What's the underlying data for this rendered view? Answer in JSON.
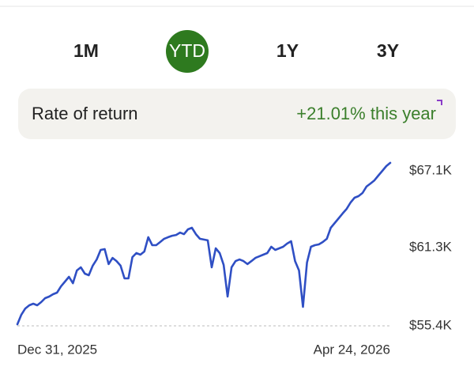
{
  "tabs": [
    "1M",
    "YTD",
    "1Y",
    "3Y"
  ],
  "selected_tab": 1,
  "return_card": {
    "label": "Rate of return",
    "value": "+21.01% this year"
  },
  "chart_data": {
    "type": "line",
    "categories": [
      "Dec 31, 2025",
      null,
      null,
      null,
      null,
      null,
      null,
      null,
      null,
      null,
      null,
      null,
      null,
      null,
      null,
      null,
      null,
      null,
      null,
      null,
      null,
      null,
      null,
      null,
      null,
      null,
      null,
      null,
      null,
      null,
      null,
      null,
      null,
      null,
      null,
      null,
      null,
      null,
      null,
      null,
      null,
      null,
      null,
      null,
      null,
      null,
      null,
      null,
      null,
      null,
      null,
      null,
      null,
      null,
      null,
      null,
      null,
      null,
      null,
      null,
      null,
      null,
      null,
      null,
      null,
      null,
      null,
      null,
      null,
      null,
      null,
      null,
      null,
      null,
      null,
      null,
      null,
      null,
      null,
      null,
      null,
      null,
      null,
      null,
      null,
      null,
      null,
      null,
      null,
      null,
      null,
      null,
      null,
      null,
      "Apr 24, 2026"
    ],
    "values": [
      55520,
      56240,
      56710,
      56950,
      57070,
      56950,
      57190,
      57490,
      57610,
      57790,
      57910,
      58380,
      58740,
      59100,
      58620,
      59580,
      59820,
      59340,
      59220,
      59940,
      60410,
      61130,
      61190,
      60060,
      60530,
      60290,
      59940,
      58980,
      58980,
      60590,
      60890,
      60770,
      61010,
      62090,
      61490,
      61490,
      61730,
      61970,
      62090,
      62200,
      62260,
      62440,
      62320,
      62680,
      62800,
      62320,
      61970,
      61910,
      61850,
      59820,
      61250,
      60890,
      60000,
      57610,
      59820,
      60290,
      60410,
      60290,
      60060,
      60290,
      60530,
      60650,
      60770,
      60890,
      61370,
      61130,
      61250,
      61370,
      61610,
      61790,
      60290,
      59580,
      56830,
      60180,
      61370,
      61490,
      61550,
      61730,
      61970,
      62800,
      63160,
      63520,
      63880,
      64230,
      64710,
      65070,
      65190,
      65430,
      65910,
      66140,
      66380,
      66740,
      67100,
      67460,
      67700
    ],
    "color": "#2f4fc4",
    "ylim": [
      55400,
      67800
    ],
    "yticks": [
      {
        "value": 55400,
        "label": "$55.4K"
      },
      {
        "value": 61300,
        "label": "$61.3K"
      },
      {
        "value": 67100,
        "label": "$67.1K"
      }
    ]
  }
}
